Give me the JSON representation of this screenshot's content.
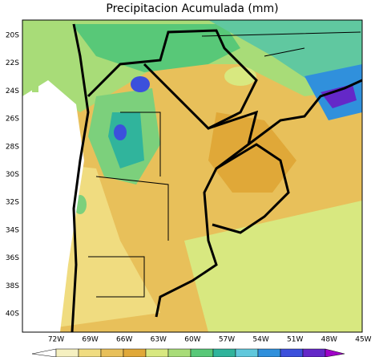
{
  "map": {
    "title": "Precipitacion Acumulada (mm)",
    "lat_labels": [
      "20S",
      "22S",
      "24S",
      "26S",
      "28S",
      "30S",
      "32S",
      "34S",
      "36S",
      "38S",
      "40S"
    ],
    "lon_labels": [
      "72W",
      "69W",
      "66W",
      "63W",
      "60W",
      "57W",
      "54W",
      "51W",
      "48W",
      "45W"
    ]
  }
}
